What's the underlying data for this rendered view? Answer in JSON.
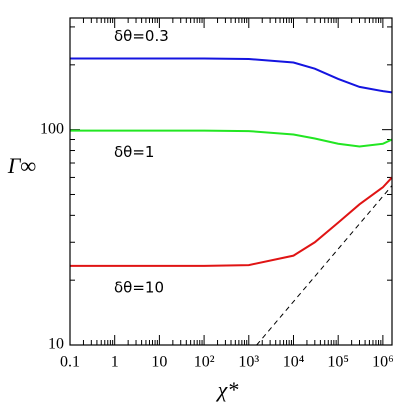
{
  "chart_data": {
    "type": "line",
    "x_label": "χ*",
    "y_label": "Γ∞",
    "log_x": true,
    "log_y": true,
    "xlim": [
      0.1,
      1600000
    ],
    "ylim": [
      10,
      330
    ],
    "xticks": [
      0.1,
      1,
      10,
      {
        "value": 100,
        "label": "10²"
      },
      {
        "value": 1000,
        "label": "10³"
      },
      {
        "value": 10000,
        "label": "10⁴"
      },
      {
        "value": 100000,
        "label": "10⁵"
      },
      {
        "value": 1000000,
        "label": "10⁶"
      }
    ],
    "yticks": [
      10,
      100
    ],
    "xminorticks": [
      0.2,
      0.3,
      0.4,
      0.5,
      0.6,
      0.7,
      0.8,
      0.9,
      2,
      3,
      4,
      5,
      6,
      7,
      8,
      9,
      20,
      30,
      40,
      50,
      60,
      70,
      80,
      90,
      200,
      300,
      400,
      500,
      600,
      700,
      800,
      900,
      2000,
      3000,
      4000,
      5000,
      6000,
      7000,
      8000,
      9000,
      20000,
      30000,
      40000,
      50000,
      60000,
      70000,
      80000,
      90000,
      200000,
      300000,
      400000,
      500000,
      600000,
      700000,
      800000,
      900000
    ],
    "yminorticks": [
      20,
      30,
      40,
      50,
      60,
      70,
      80,
      90,
      200,
      300
    ],
    "x": [
      0.1,
      1,
      10,
      100,
      1000,
      10000,
      30000,
      100000,
      300000,
      1000000,
      1600000
    ],
    "series": [
      {
        "name": "δθ=0.3",
        "color": "#1414e0",
        "values": [
          214,
          214,
          214,
          214,
          213,
          205,
          192,
          172,
          158,
          151,
          149
        ]
      },
      {
        "name": "δθ=1",
        "color": "#22e622",
        "values": [
          99,
          99,
          99,
          99,
          98.5,
          95,
          91,
          86,
          83.5,
          86,
          90
        ]
      },
      {
        "name": "δθ=10",
        "color": "#e01414",
        "values": [
          23.3,
          23.3,
          23.3,
          23.3,
          23.5,
          26,
          30,
          37,
          45,
          54,
          60
        ]
      },
      {
        "color": "#000000",
        "dash": true,
        "x": [
          1500,
          1600000
        ],
        "values": [
          10,
          55
        ]
      }
    ]
  }
}
